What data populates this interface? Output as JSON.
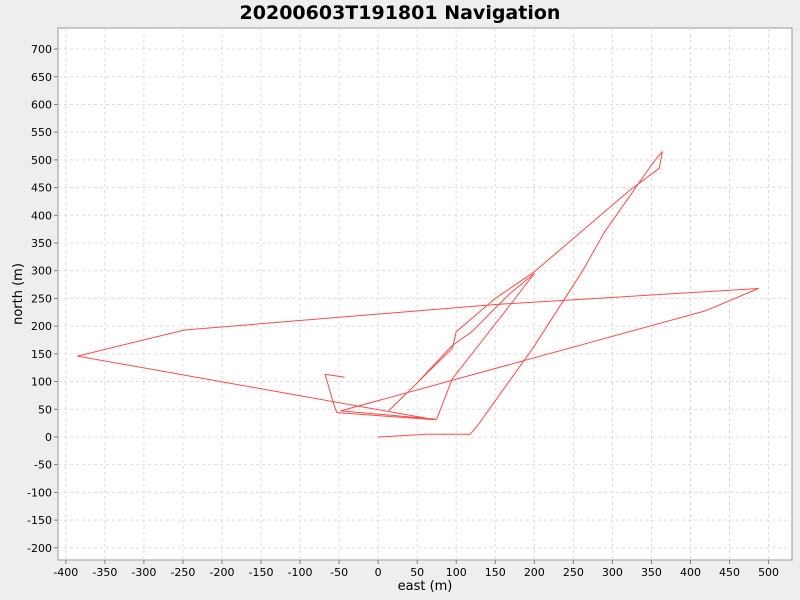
{
  "chart_data": {
    "type": "line",
    "title": "20200603T191801 Navigation",
    "xlabel": "east (m)",
    "ylabel": "north (m)",
    "xlim": [
      -410,
      530
    ],
    "ylim": [
      -222,
      738
    ],
    "xticks": [
      -400,
      -350,
      -300,
      -250,
      -200,
      -150,
      -100,
      -50,
      0,
      50,
      100,
      150,
      200,
      250,
      300,
      350,
      400,
      450,
      500
    ],
    "yticks": [
      -200,
      -150,
      -100,
      -50,
      0,
      50,
      100,
      150,
      200,
      250,
      300,
      350,
      400,
      450,
      500,
      550,
      600,
      650,
      700
    ],
    "grid": true,
    "series": [
      {
        "name": "",
        "color": "#ff4c4c",
        "x": [
          0,
          62,
          118,
          128,
          198,
          262,
          290,
          325,
          348,
          358,
          364,
          362,
          360,
          322,
          200,
          150,
          100,
          95,
          14,
          50,
          95,
          120,
          168,
          200,
          170,
          95,
          75,
          -48,
          420,
          487,
          150,
          -248,
          -385,
          73,
          -53,
          -57,
          -68,
          -43
        ],
        "y": [
          0,
          5,
          5,
          22,
          160,
          300,
          370,
          440,
          487,
          505,
          515,
          500,
          485,
          445,
          298,
          250,
          190,
          160,
          48,
          98,
          165,
          190,
          258,
          295,
          240,
          105,
          32,
          47,
          228,
          268,
          239,
          193,
          146,
          31,
          44,
          60,
          113,
          108
        ]
      }
    ]
  }
}
